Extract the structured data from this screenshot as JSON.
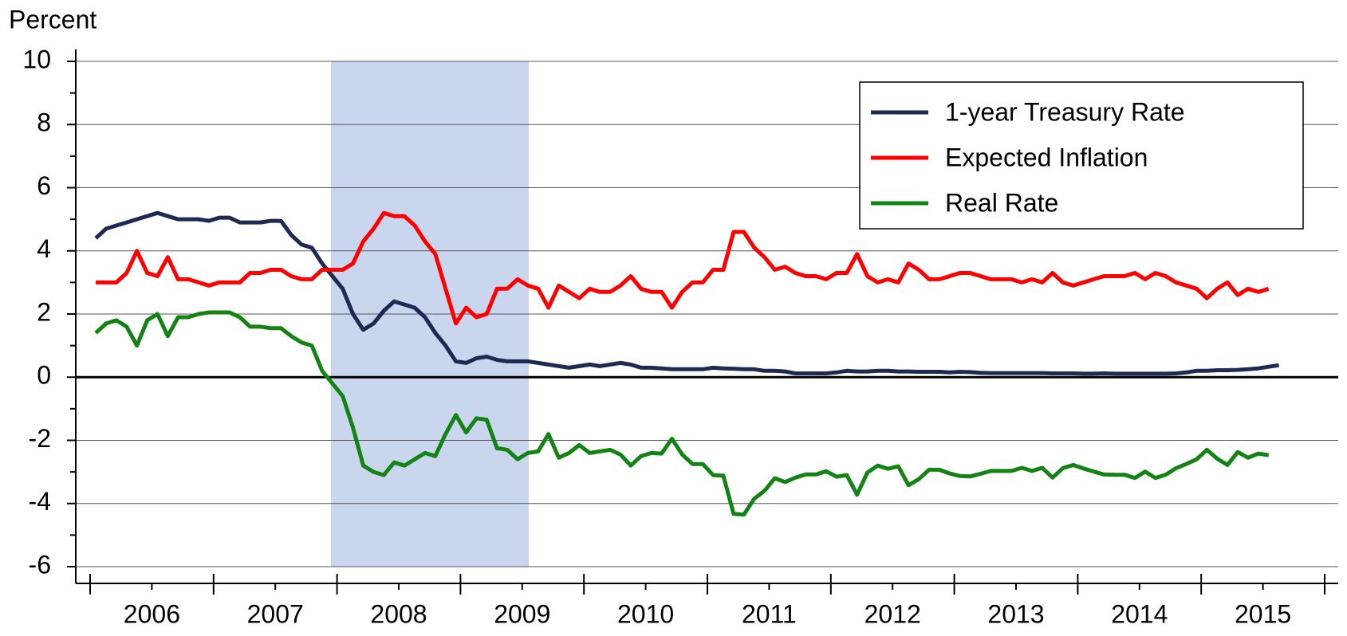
{
  "chart_data": {
    "type": "line",
    "y_axis_label": "Percent",
    "categories": [
      null,
      null,
      null,
      null,
      null,
      null,
      "2006",
      null,
      null,
      null,
      null,
      null,
      null,
      null,
      null,
      null,
      null,
      null,
      "2007",
      null,
      null,
      null,
      null,
      null,
      null,
      null,
      null,
      null,
      null,
      null,
      "2008",
      null,
      null,
      null,
      null,
      null,
      null,
      null,
      null,
      null,
      null,
      null,
      "2009",
      null,
      null,
      null,
      null,
      null,
      null,
      null,
      null,
      null,
      null,
      null,
      "2010",
      null,
      null,
      null,
      null,
      null,
      null,
      null,
      null,
      null,
      null,
      null,
      "2011",
      null,
      null,
      null,
      null,
      null,
      null,
      null,
      null,
      null,
      null,
      null,
      "2012",
      null,
      null,
      null,
      null,
      null,
      null,
      null,
      null,
      null,
      null,
      null,
      "2013",
      null,
      null,
      null,
      null,
      null,
      null,
      null,
      null,
      null,
      null,
      null,
      "2014",
      null,
      null,
      null,
      null,
      null,
      null,
      null,
      null,
      null,
      null,
      null,
      "2015",
      null
    ],
    "ylim": [
      -6,
      10
    ],
    "yticks": [
      -6,
      -4,
      -2,
      0,
      2,
      4,
      6,
      8,
      10
    ],
    "yminor_ticks": [
      -5,
      -3,
      -1,
      1,
      3,
      5,
      7,
      9
    ],
    "grid": true,
    "legend": "upper right",
    "series": [
      {
        "name": "1-year Treasury Rate",
        "color": "#1f2a52",
        "values": [
          4.4,
          4.7,
          4.8,
          4.9,
          5.0,
          5.1,
          5.2,
          5.1,
          5.0,
          5.0,
          5.0,
          4.95,
          5.05,
          5.05,
          4.9,
          4.9,
          4.9,
          4.95,
          4.95,
          4.5,
          4.2,
          4.1,
          3.6,
          3.2,
          2.8,
          2.0,
          1.5,
          1.7,
          2.1,
          2.4,
          2.3,
          2.2,
          1.9,
          1.4,
          1.0,
          0.5,
          0.45,
          0.6,
          0.65,
          0.55,
          0.5,
          0.5,
          0.5,
          0.45,
          0.4,
          0.35,
          0.3,
          0.35,
          0.4,
          0.35,
          0.4,
          0.45,
          0.4,
          0.3,
          0.3,
          0.28,
          0.25,
          0.25,
          0.25,
          0.25,
          0.3,
          0.28,
          0.27,
          0.25,
          0.25,
          0.2,
          0.2,
          0.18,
          0.12,
          0.12,
          0.12,
          0.12,
          0.15,
          0.2,
          0.18,
          0.18,
          0.2,
          0.2,
          0.18,
          0.18,
          0.17,
          0.17,
          0.17,
          0.15,
          0.17,
          0.16,
          0.14,
          0.13,
          0.13,
          0.13,
          0.13,
          0.13,
          0.13,
          0.12,
          0.12,
          0.12,
          0.11,
          0.11,
          0.12,
          0.11,
          0.11,
          0.11,
          0.11,
          0.11,
          0.11,
          0.12,
          0.15,
          0.2,
          0.2,
          0.22,
          0.22,
          0.23,
          0.25,
          0.28,
          0.33,
          0.38
        ]
      },
      {
        "name": "Expected Inflation",
        "color": "#ff0000",
        "values": [
          3.0,
          3.0,
          3.0,
          3.3,
          4.0,
          3.3,
          3.2,
          3.8,
          3.1,
          3.1,
          3.0,
          2.9,
          3.0,
          3.0,
          3.0,
          3.3,
          3.3,
          3.4,
          3.4,
          3.2,
          3.1,
          3.1,
          3.4,
          3.4,
          3.4,
          3.6,
          4.3,
          4.7,
          5.2,
          5.1,
          5.1,
          4.8,
          4.3,
          3.9,
          2.8,
          1.7,
          2.2,
          1.9,
          2.0,
          2.8,
          2.8,
          3.1,
          2.9,
          2.8,
          2.2,
          2.9,
          2.7,
          2.5,
          2.8,
          2.7,
          2.7,
          2.9,
          3.2,
          2.8,
          2.7,
          2.7,
          2.2,
          2.7,
          3.0,
          3.0,
          3.4,
          3.4,
          4.6,
          4.6,
          4.1,
          3.8,
          3.4,
          3.5,
          3.3,
          3.2,
          3.2,
          3.1,
          3.3,
          3.3,
          3.9,
          3.2,
          3.0,
          3.1,
          3.0,
          3.6,
          3.4,
          3.1,
          3.1,
          3.2,
          3.3,
          3.3,
          3.2,
          3.1,
          3.1,
          3.1,
          3.0,
          3.1,
          3.0,
          3.3,
          3.0,
          2.9,
          3.0,
          3.1,
          3.2,
          3.2,
          3.2,
          3.3,
          3.1,
          3.3,
          3.2,
          3.0,
          2.9,
          2.8,
          2.5,
          2.8,
          3.0,
          2.6,
          2.8,
          2.7,
          2.8,
          null
        ]
      },
      {
        "name": "Real Rate",
        "color": "#138313",
        "values": [
          1.4,
          1.7,
          1.8,
          1.6,
          1.0,
          1.8,
          2.0,
          1.3,
          1.9,
          1.9,
          2.0,
          2.05,
          2.05,
          2.05,
          1.9,
          1.6,
          1.6,
          1.55,
          1.55,
          1.3,
          1.1,
          1.0,
          0.2,
          -0.2,
          -0.6,
          -1.6,
          -2.8,
          -3.0,
          -3.1,
          -2.7,
          -2.8,
          -2.6,
          -2.4,
          -2.5,
          -1.8,
          -1.2,
          -1.75,
          -1.3,
          -1.35,
          -2.25,
          -2.3,
          -2.6,
          -2.4,
          -2.35,
          -1.8,
          -2.55,
          -2.4,
          -2.15,
          -2.4,
          -2.35,
          -2.3,
          -2.45,
          -2.8,
          -2.5,
          -2.4,
          -2.42,
          -1.95,
          -2.45,
          -2.75,
          -2.75,
          -3.1,
          -3.12,
          -4.33,
          -4.35,
          -3.85,
          -3.6,
          -3.2,
          -3.32,
          -3.18,
          -3.08,
          -3.08,
          -2.98,
          -3.15,
          -3.1,
          -3.72,
          -3.02,
          -2.8,
          -2.9,
          -2.82,
          -3.42,
          -3.23,
          -2.93,
          -2.93,
          -3.05,
          -3.13,
          -3.14,
          -3.06,
          -2.97,
          -2.97,
          -2.97,
          -2.87,
          -2.97,
          -2.87,
          -3.18,
          -2.88,
          -2.78,
          -2.89,
          -2.99,
          -3.08,
          -3.09,
          -3.09,
          -3.19,
          -2.99,
          -3.19,
          -3.09,
          -2.88,
          -2.75,
          -2.6,
          -2.3,
          -2.58,
          -2.78,
          -2.37,
          -2.55,
          -2.42,
          -2.47,
          null
        ]
      }
    ]
  }
}
